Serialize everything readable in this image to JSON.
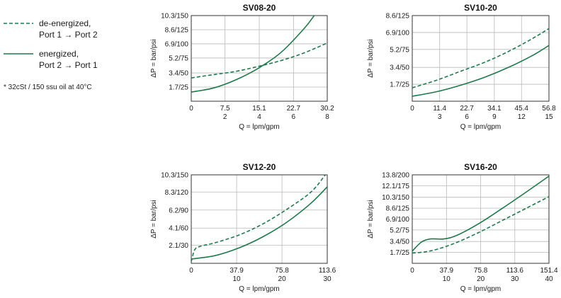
{
  "colors": {
    "series": "#1e7a4a",
    "grid": "#b9b9b9",
    "frame": "#333333",
    "text": "#1a1a1a"
  },
  "legend": {
    "de_energized": {
      "line1": "de-energized,",
      "line2": "Port 1 → Port 2"
    },
    "energized": {
      "line1": "energized,",
      "line2": "Port 2 → Port 1"
    },
    "note": "* 32cSt / 150 ssu oil at 40°C"
  },
  "chart_data": [
    {
      "type": "line",
      "title": "SV08-20",
      "xlabel": "Q = lpm/gpm",
      "ylabel": "ΔP = bar/psi",
      "xlim": [
        0,
        30.2
      ],
      "ylim": [
        0,
        10.3
      ],
      "x_ticks_lpm": [
        0,
        7.5,
        15.1,
        22.7,
        30.2
      ],
      "x_tick_labels_lpm": [
        "0",
        "7.5",
        "15.1",
        "22.7",
        "30.2"
      ],
      "x_tick_labels_gpm": [
        "",
        "2",
        "4",
        "6",
        "8"
      ],
      "y_ticks": [
        1.7,
        3.4,
        5.2,
        6.9,
        8.6,
        10.3
      ],
      "y_tick_labels": [
        "1.7/25",
        "3.4/50",
        "5.2/75",
        "6.9/100",
        "8.6/125",
        "10.3/150"
      ],
      "series": [
        {
          "name": "de-energized, Port 1 → Port 2",
          "style": "dashed",
          "x": [
            0,
            5,
            10,
            15,
            20,
            25,
            30.2
          ],
          "y": [
            2.8,
            3.2,
            3.6,
            4.2,
            4.9,
            5.8,
            7.0
          ]
        },
        {
          "name": "energized, Port 2 → Port 1",
          "style": "solid",
          "x": [
            0,
            5,
            10,
            15,
            20,
            25,
            27.3
          ],
          "y": [
            1.1,
            1.6,
            2.6,
            4.0,
            5.9,
            8.7,
            10.3
          ]
        }
      ]
    },
    {
      "type": "line",
      "title": "SV10-20",
      "xlabel": "Q = lpm/gpm",
      "ylabel": "ΔP = bar/psi",
      "xlim": [
        0,
        56.8
      ],
      "ylim": [
        0,
        8.6
      ],
      "x_ticks_lpm": [
        0,
        11.4,
        22.7,
        34.1,
        45.4,
        56.8
      ],
      "x_tick_labels_lpm": [
        "0",
        "11.4",
        "22.7",
        "34.1",
        "45.4",
        "56.8"
      ],
      "x_tick_labels_gpm": [
        "",
        "3",
        "6",
        "9",
        "12",
        "15"
      ],
      "y_ticks": [
        1.7,
        3.4,
        5.2,
        6.9,
        8.6
      ],
      "y_tick_labels": [
        "1.7/25",
        "3.4/50",
        "5.2/75",
        "6.9/100",
        "8.6/125"
      ],
      "series": [
        {
          "name": "de-energized, Port 1 → Port 2",
          "style": "dashed",
          "x": [
            0,
            10,
            20,
            30,
            40,
            50,
            56.8
          ],
          "y": [
            1.35,
            2.1,
            3.0,
            3.9,
            5.0,
            6.3,
            7.3
          ]
        },
        {
          "name": "energized, Port 2 → Port 1",
          "style": "solid",
          "x": [
            0,
            10,
            20,
            30,
            40,
            50,
            56.8
          ],
          "y": [
            0.5,
            0.95,
            1.6,
            2.4,
            3.4,
            4.6,
            5.6
          ]
        }
      ]
    },
    {
      "type": "line",
      "title": "SV12-20",
      "xlabel": "Q = lpm/gpm",
      "ylabel": "ΔP = bar/psi",
      "xlim": [
        0,
        113.6
      ],
      "ylim": [
        0,
        10.3
      ],
      "x_ticks_lpm": [
        0,
        37.9,
        75.8,
        113.6
      ],
      "x_tick_labels_lpm": [
        "0",
        "37.9",
        "75.8",
        "113.6"
      ],
      "x_tick_labels_gpm": [
        "",
        "10",
        "20",
        "30"
      ],
      "y_ticks": [
        2.1,
        4.1,
        6.2,
        8.3,
        10.3
      ],
      "y_tick_labels": [
        "2.1/30",
        "4.1/60",
        "6.2/90",
        "8.3/120",
        "10.3/150"
      ],
      "series": [
        {
          "name": "de-energized, Port 1 → Port 2",
          "style": "dashed",
          "x": [
            0,
            3,
            8,
            20,
            40,
            60,
            80,
            100,
            112
          ],
          "y": [
            0.2,
            1.6,
            2.0,
            2.4,
            3.3,
            4.6,
            6.3,
            8.3,
            10.3
          ]
        },
        {
          "name": "energized, Port 2 → Port 1",
          "style": "solid",
          "x": [
            0,
            20,
            40,
            60,
            80,
            100,
            113.6
          ],
          "y": [
            0.5,
            0.9,
            1.8,
            3.1,
            4.8,
            7.0,
            8.9
          ]
        }
      ]
    },
    {
      "type": "line",
      "title": "SV16-20",
      "xlabel": "Q = lpm/gpm",
      "ylabel": "ΔP = bar/psi",
      "xlim": [
        0,
        151.4
      ],
      "ylim": [
        0,
        13.8
      ],
      "x_ticks_lpm": [
        0,
        37.9,
        75.8,
        113.6,
        151.4
      ],
      "x_tick_labels_lpm": [
        "0",
        "37.9",
        "75.8",
        "113.6",
        "151.4"
      ],
      "x_tick_labels_gpm": [
        "",
        "10",
        "20",
        "30",
        "40"
      ],
      "y_ticks": [
        1.7,
        3.4,
        5.2,
        6.9,
        8.6,
        10.3,
        12.1,
        13.8
      ],
      "y_tick_labels": [
        "1.7/25",
        "3.4/50",
        "5.2/75",
        "6.9/100",
        "8.6/125",
        "10.3/150",
        "12.1/175",
        "13.8/200"
      ],
      "series": [
        {
          "name": "de-energized, Port 1 → Port 2",
          "style": "dashed",
          "x": [
            0,
            15,
            30,
            50,
            75,
            100,
            125,
            151.4
          ],
          "y": [
            1.6,
            1.8,
            2.3,
            3.3,
            4.9,
            6.7,
            8.5,
            10.4
          ]
        },
        {
          "name": "energized, Port 2 → Port 1",
          "style": "solid",
          "x": [
            0,
            10,
            20,
            35,
            50,
            75,
            100,
            125,
            151.4
          ],
          "y": [
            1.9,
            3.3,
            3.8,
            3.8,
            4.4,
            6.3,
            8.6,
            11.0,
            13.6
          ]
        }
      ]
    }
  ]
}
